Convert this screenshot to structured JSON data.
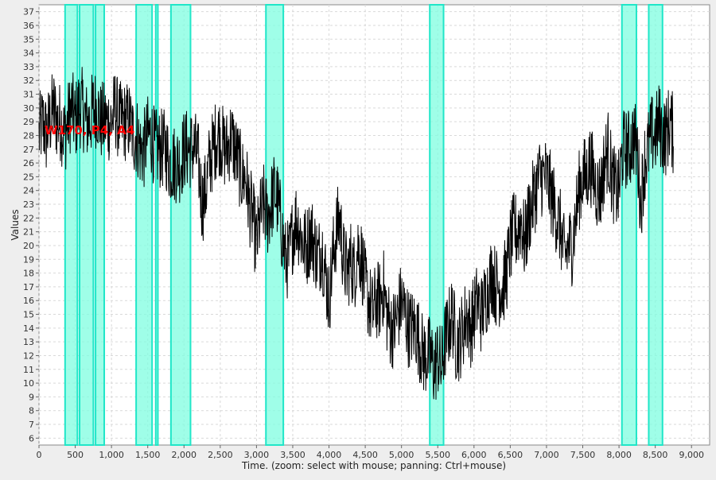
{
  "chart_data": {
    "type": "line",
    "title": "",
    "xlabel": "Time. (zoom: select with mouse; panning: Ctrl+mouse)",
    "ylabel": "Values",
    "annotation": "W170, P4, A4",
    "xlim": [
      0,
      9250
    ],
    "ylim": [
      5.5,
      37.5
    ],
    "x_ticks": [
      0,
      500,
      1000,
      1500,
      2000,
      2500,
      3000,
      3500,
      4000,
      4500,
      5000,
      5500,
      6000,
      6500,
      7000,
      7500,
      8000,
      8500,
      9000
    ],
    "x_tick_labels": [
      "0",
      "500",
      "1,000",
      "1,500",
      "2,000",
      "2,500",
      "3,000",
      "3,500",
      "4,000",
      "4,500",
      "5,000",
      "5,500",
      "6,000",
      "6,500",
      "7,000",
      "7,500",
      "8,000",
      "8,500",
      "9,000"
    ],
    "y_ticks": [
      6,
      7,
      8,
      9,
      10,
      11,
      12,
      13,
      14,
      15,
      16,
      17,
      18,
      19,
      20,
      21,
      22,
      23,
      24,
      25,
      26,
      27,
      28,
      29,
      30,
      31,
      32,
      33,
      34,
      35,
      36,
      37
    ],
    "grid": true,
    "colors": {
      "plot_background": "#ffffff",
      "grid": "#d9d9d9",
      "series": "#000000",
      "highlight_fill": "#7ffde0",
      "highlight_edge": "#20e6c8",
      "annotation": "#ff0000",
      "page_background": "#eeeeee"
    },
    "highlight_regions": [
      [
        360,
        530
      ],
      [
        560,
        750
      ],
      [
        780,
        900
      ],
      [
        1340,
        1560
      ],
      [
        1610,
        1640
      ],
      [
        1820,
        2090
      ],
      [
        3130,
        3370
      ],
      [
        5390,
        5580
      ],
      [
        8040,
        8240
      ],
      [
        8410,
        8600
      ]
    ],
    "series": [
      {
        "values_x": [
          0,
          50,
          100,
          150,
          200,
          250,
          300,
          350,
          400,
          450,
          500,
          550,
          600,
          650,
          700,
          750,
          800,
          850,
          900,
          950,
          1000,
          1050,
          1100,
          1150,
          1200,
          1250,
          1300,
          1350,
          1400,
          1450,
          1500,
          1550,
          1600,
          1650,
          1700,
          1750,
          1800,
          1850,
          1900,
          1950,
          2000,
          2050,
          2100,
          2150,
          2200,
          2250,
          2300,
          2350,
          2400,
          2450,
          2500,
          2550,
          2600,
          2650,
          2700,
          2750,
          2800,
          2850,
          2900,
          2950,
          3000,
          3050,
          3100,
          3150,
          3200,
          3250,
          3300,
          3350,
          3400,
          3450,
          3500,
          3550,
          3600,
          3650,
          3700,
          3750,
          3800,
          3850,
          3900,
          3950,
          4000,
          4050,
          4100,
          4150,
          4200,
          4250,
          4300,
          4350,
          4400,
          4450,
          4500,
          4550,
          4600,
          4650,
          4700,
          4750,
          4800,
          4850,
          4900,
          4950,
          5000,
          5050,
          5100,
          5150,
          5200,
          5250,
          5300,
          5350,
          5400,
          5450,
          5500,
          5550,
          5600,
          5650,
          5700,
          5750,
          5800,
          5850,
          5900,
          5950,
          6000,
          6050,
          6100,
          6150,
          6200,
          6250,
          6300,
          6350,
          6400,
          6450,
          6500,
          6550,
          6600,
          6650,
          6700,
          6750,
          6800,
          6850,
          6900,
          6950,
          7000,
          7050,
          7100,
          7150,
          7200,
          7250,
          7300,
          7350,
          7400,
          7450,
          7500,
          7550,
          7600,
          7650,
          7700,
          7750,
          7800,
          7850,
          7900,
          7950,
          8000,
          8050,
          8100,
          8150,
          8200,
          8250,
          8300,
          8350,
          8400,
          8450,
          8500,
          8550,
          8600,
          8650,
          8700,
          8750
        ],
        "values_y": [
          28,
          29,
          28,
          29,
          30,
          29,
          29,
          28,
          29,
          30,
          29,
          30,
          30,
          29,
          29,
          30,
          30,
          29,
          29,
          29,
          29,
          30,
          29,
          29,
          29,
          29,
          28,
          28,
          27,
          27,
          28,
          28,
          27,
          27,
          27,
          27,
          26,
          26,
          26,
          26,
          27,
          27,
          27,
          27,
          26,
          23,
          24,
          26,
          27,
          28,
          28,
          27,
          27,
          28,
          27,
          26,
          25,
          25,
          23,
          22,
          20,
          22,
          23,
          22,
          23,
          24,
          23,
          21,
          19,
          19,
          21,
          22,
          21,
          20,
          20,
          21,
          20,
          19,
          20,
          18,
          16,
          19,
          21,
          22,
          19,
          18,
          19,
          18,
          20,
          19,
          17,
          16,
          15,
          16,
          16,
          17,
          15,
          14,
          14,
          15,
          16,
          15,
          14,
          14,
          14,
          13,
          12,
          12,
          12,
          11,
          12,
          11,
          13,
          14,
          15,
          13,
          13,
          14,
          15,
          14,
          15,
          16,
          15,
          16,
          17,
          18,
          17,
          17,
          17,
          18,
          20,
          21,
          21,
          22,
          20,
          22,
          23,
          24,
          25,
          25,
          25,
          24,
          23,
          22,
          21,
          19,
          20,
          20,
          22,
          24,
          25,
          25,
          26,
          25,
          24,
          24,
          26,
          27,
          25,
          24,
          24,
          27,
          27,
          27,
          28,
          27,
          23,
          26,
          27,
          28,
          28,
          29,
          28,
          28,
          29,
          28
        ],
        "noise_amplitude_y": 3.0
      }
    ]
  }
}
